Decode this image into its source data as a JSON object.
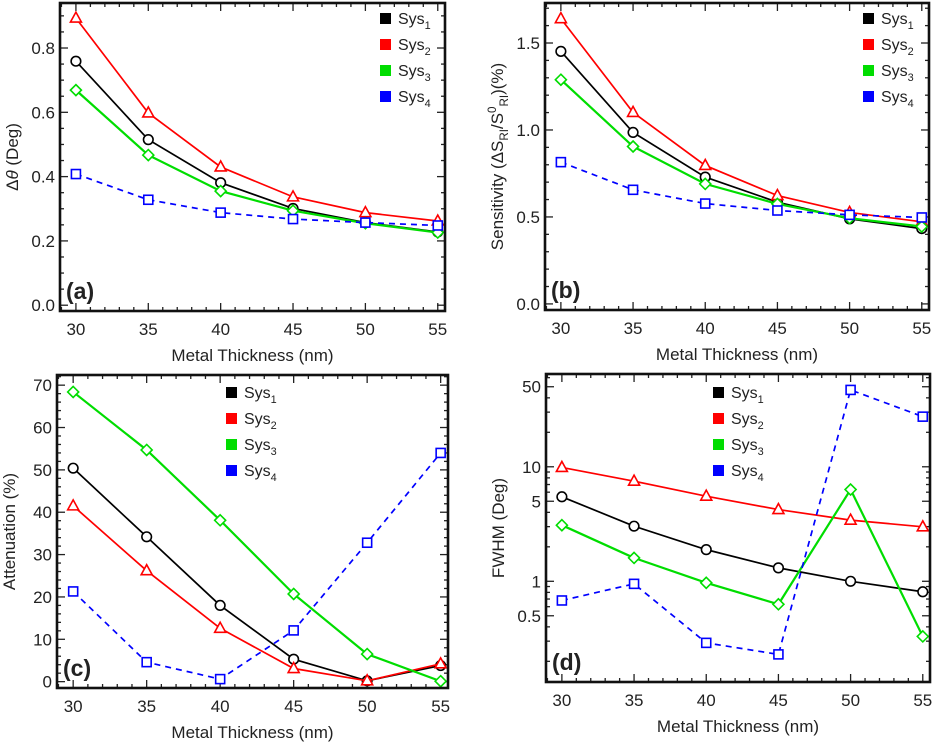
{
  "chart_data": [
    {
      "type": "line",
      "panel_label": "(a)",
      "xlabel": "Metal Thickness (nm)",
      "ylabel": "Δ*θ* (Deg)",
      "x": [
        30,
        35,
        40,
        45,
        50,
        55
      ],
      "xlim": [
        28.9,
        55.5
      ],
      "xticks": [
        30,
        35,
        40,
        45,
        50,
        55
      ],
      "ylim": [
        -0.018,
        0.94
      ],
      "yscale": "linear",
      "yticks": [
        0.0,
        0.2,
        0.4,
        0.6,
        0.8
      ],
      "ytick_labels": [
        "0.0",
        "0.2",
        "0.4",
        "0.6",
        "0.8"
      ],
      "legend_placement": "top-right",
      "series": [
        {
          "name": "Sys_{1}",
          "color": "#000000",
          "marker": "circle",
          "dashed": false,
          "values": [
            0.759,
            0.515,
            0.381,
            0.301,
            0.257,
            0.228
          ]
        },
        {
          "name": "Sys_{2}",
          "color": "#ff0000",
          "marker": "triangle",
          "dashed": false,
          "values": [
            0.893,
            0.598,
            0.43,
            0.337,
            0.288,
            0.262
          ]
        },
        {
          "name": "Sys_{3}",
          "color": "#00dd00",
          "marker": "diamond",
          "dashed": false,
          "values": [
            0.669,
            0.467,
            0.355,
            0.294,
            0.255,
            0.226
          ]
        },
        {
          "name": "Sys_{4}",
          "color": "#0000ff",
          "marker": "square",
          "dashed": true,
          "values": [
            0.408,
            0.328,
            0.288,
            0.268,
            0.257,
            0.248
          ]
        }
      ]
    },
    {
      "type": "line",
      "panel_label": "(b)",
      "xlabel": "Metal Thickness (nm)",
      "ylabel": "Sensitivity (ΔS_{RI}/S^{0}_{RI})(%)",
      "x": [
        30,
        35,
        40,
        45,
        50,
        55
      ],
      "xlim": [
        28.9,
        55.5
      ],
      "xticks": [
        30,
        35,
        40,
        45,
        50,
        55
      ],
      "ylim": [
        -0.035,
        1.73
      ],
      "yscale": "linear",
      "yticks": [
        0.0,
        0.5,
        1.0,
        1.5
      ],
      "ytick_labels": [
        "0.0",
        "0.5",
        "1.0",
        "1.5"
      ],
      "legend_placement": "top-right",
      "series": [
        {
          "name": "Sys_{1}",
          "color": "#000000",
          "marker": "circle",
          "dashed": false,
          "values": [
            1.452,
            0.986,
            0.729,
            0.585,
            0.489,
            0.433
          ]
        },
        {
          "name": "Sys_{2}",
          "color": "#ff0000",
          "marker": "triangle",
          "dashed": false,
          "values": [
            1.64,
            1.101,
            0.796,
            0.623,
            0.526,
            0.472
          ]
        },
        {
          "name": "Sys_{3}",
          "color": "#00dd00",
          "marker": "diamond",
          "dashed": false,
          "values": [
            1.289,
            0.905,
            0.69,
            0.575,
            0.493,
            0.445
          ]
        },
        {
          "name": "Sys_{4}",
          "color": "#0000ff",
          "marker": "square",
          "dashed": true,
          "values": [
            0.815,
            0.656,
            0.577,
            0.537,
            0.512,
            0.497
          ]
        }
      ]
    },
    {
      "type": "line",
      "panel_label": "(c)",
      "xlabel": "Metal Thickness (nm)",
      "ylabel": "Attenuation (%)",
      "x": [
        30,
        35,
        40,
        45,
        50,
        55
      ],
      "xlim": [
        28.9,
        55.5
      ],
      "xticks": [
        30,
        35,
        40,
        45,
        50,
        55
      ],
      "ylim": [
        -1.5,
        72.4
      ],
      "yscale": "linear",
      "yticks": [
        0,
        10,
        20,
        30,
        40,
        50,
        60,
        70
      ],
      "ytick_labels": [
        "0",
        "10",
        "20",
        "30",
        "40",
        "50",
        "60",
        "70"
      ],
      "legend_placement": "top-center",
      "series": [
        {
          "name": "Sys_{1}",
          "color": "#000000",
          "marker": "circle",
          "dashed": false,
          "values": [
            50.4,
            34.2,
            18.0,
            5.3,
            0.2,
            3.8
          ]
        },
        {
          "name": "Sys_{2}",
          "color": "#ff0000",
          "marker": "triangle",
          "dashed": false,
          "values": [
            41.5,
            26.2,
            12.6,
            3.1,
            0.2,
            4.2
          ]
        },
        {
          "name": "Sys_{3}",
          "color": "#00dd00",
          "marker": "diamond",
          "dashed": false,
          "values": [
            68.4,
            54.7,
            38.1,
            20.7,
            6.5,
            0.1
          ]
        },
        {
          "name": "Sys_{4}",
          "color": "#0000ff",
          "marker": "square",
          "dashed": true,
          "values": [
            21.3,
            4.6,
            0.6,
            12.1,
            32.8,
            54.0
          ]
        }
      ]
    },
    {
      "type": "line",
      "panel_label": "(d)",
      "xlabel": "Metal Thickness (nm)",
      "ylabel": "FWHM (Deg)",
      "x": [
        30,
        35,
        40,
        45,
        50,
        55
      ],
      "xlim": [
        28.9,
        55.5
      ],
      "xticks": [
        30,
        35,
        40,
        45,
        50,
        55
      ],
      "ylim": [
        0.132,
        64.6
      ],
      "yscale": "log",
      "yticks": [
        0.5,
        1,
        5,
        10,
        50
      ],
      "ytick_labels": [
        "0.5",
        "1",
        "5",
        "10",
        "50"
      ],
      "legend_placement": "top-center",
      "series": [
        {
          "name": "Sys_{1}",
          "color": "#000000",
          "marker": "circle",
          "dashed": false,
          "values": [
            5.47,
            3.03,
            1.89,
            1.31,
            1.0,
            0.81
          ]
        },
        {
          "name": "Sys_{2}",
          "color": "#ff0000",
          "marker": "triangle",
          "dashed": false,
          "values": [
            9.87,
            7.49,
            5.54,
            4.23,
            3.42,
            2.99
          ]
        },
        {
          "name": "Sys_{3}",
          "color": "#00dd00",
          "marker": "diamond",
          "dashed": false,
          "values": [
            3.09,
            1.6,
            0.97,
            0.63,
            6.33,
            0.33
          ]
        },
        {
          "name": "Sys_{4}",
          "color": "#0000ff",
          "marker": "square",
          "dashed": true,
          "values": [
            0.68,
            0.95,
            0.29,
            0.23,
            46.9,
            27.4
          ]
        }
      ]
    }
  ]
}
